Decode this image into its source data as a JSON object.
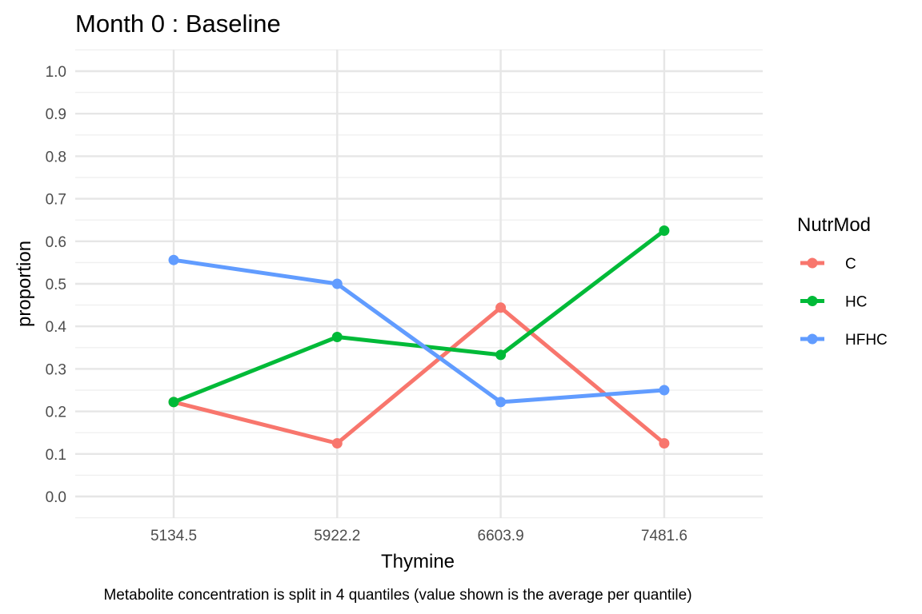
{
  "chart_data": {
    "type": "line",
    "title": "Month 0 : Baseline",
    "xlabel": "Thymine",
    "ylabel": "proportion",
    "caption": "Metabolite concentration is split in 4 quantiles (value shown is the average per quantile)",
    "categories": [
      "5134.5",
      "5922.2",
      "6603.9",
      "7481.6"
    ],
    "yticks": [
      "0.0",
      "0.1",
      "0.2",
      "0.3",
      "0.4",
      "0.5",
      "0.6",
      "0.7",
      "0.8",
      "0.9",
      "1.0"
    ],
    "ylim": [
      0,
      1
    ],
    "grid": true,
    "legend": {
      "title": "NutrMod",
      "placement": "right"
    },
    "series": [
      {
        "name": "C",
        "color": "#F8766D",
        "values": [
          0.222,
          0.125,
          0.444,
          0.125
        ]
      },
      {
        "name": "HC",
        "color": "#00BA38",
        "values": [
          0.222,
          0.375,
          0.333,
          0.625
        ]
      },
      {
        "name": "HFHC",
        "color": "#619CFF",
        "values": [
          0.556,
          0.5,
          0.222,
          0.25
        ]
      }
    ]
  }
}
